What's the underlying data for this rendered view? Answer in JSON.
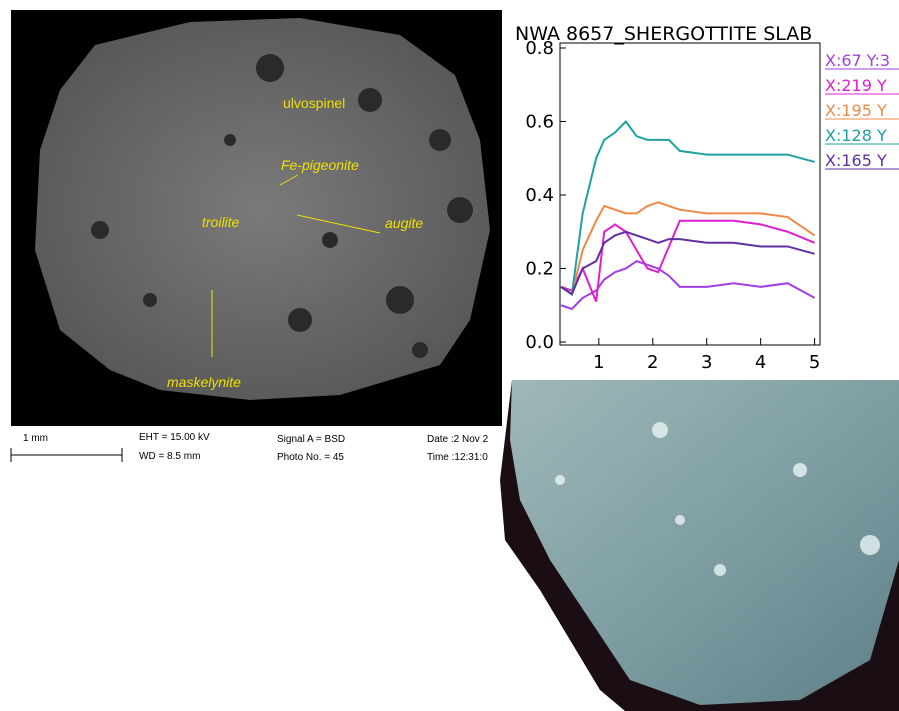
{
  "sem": {
    "labels": [
      "ulvospinel",
      "Fe-pigeonite",
      "troilite",
      "augite",
      "maskelynite"
    ],
    "caption": {
      "scale": "1 mm",
      "eht": "EHT = 15.00 kV",
      "wd": "WD =  8.5 mm",
      "signal": "Signal A = BSD",
      "photo": "Photo No. = 45",
      "date": "Date :2 Nov 2",
      "time": "Time :12:31:0"
    }
  },
  "chart_data": {
    "type": "line",
    "title": "NWA 8657_SHERGOTTITE SLAB",
    "x": [
      0.3,
      0.5,
      0.7,
      0.95,
      1.1,
      1.3,
      1.5,
      1.7,
      1.9,
      2.1,
      2.3,
      2.5,
      3,
      3.5,
      4,
      4.5,
      5
    ],
    "series": [
      {
        "name": "X:67 Y:3",
        "color": "#a040e0",
        "values": [
          0.1,
          0.09,
          0.12,
          0.14,
          0.17,
          0.19,
          0.2,
          0.22,
          0.21,
          0.2,
          0.18,
          0.15,
          0.15,
          0.16,
          0.15,
          0.16,
          0.12
        ]
      },
      {
        "name": "X:219 Y",
        "color": "#e020d0",
        "values": [
          0.15,
          0.14,
          0.2,
          0.11,
          0.3,
          0.32,
          0.3,
          0.25,
          0.2,
          0.19,
          0.26,
          0.33,
          0.33,
          0.33,
          0.32,
          0.3,
          0.27
        ]
      },
      {
        "name": "X:195 Y",
        "color": "#f08848",
        "values": [
          0.15,
          0.13,
          0.25,
          0.33,
          0.37,
          0.36,
          0.35,
          0.35,
          0.37,
          0.38,
          0.37,
          0.36,
          0.35,
          0.35,
          0.35,
          0.34,
          0.29
        ]
      },
      {
        "name": "X:128 Y",
        "color": "#20a0a0",
        "values": [
          0.15,
          0.13,
          0.35,
          0.5,
          0.55,
          0.57,
          0.6,
          0.56,
          0.55,
          0.55,
          0.55,
          0.52,
          0.51,
          0.51,
          0.51,
          0.51,
          0.49
        ]
      },
      {
        "name": "X:165 Y",
        "color": "#6030a0",
        "values": [
          0.15,
          0.13,
          0.2,
          0.22,
          0.27,
          0.29,
          0.3,
          0.29,
          0.28,
          0.27,
          0.28,
          0.28,
          0.27,
          0.27,
          0.26,
          0.26,
          0.24
        ]
      }
    ],
    "xlim": [
      0.28,
      5.1
    ],
    "xticks": [
      1,
      2,
      3,
      4,
      5
    ],
    "ylim": [
      0,
      0.8
    ],
    "yticks": [
      {
        "value": 0,
        "label": "0.0"
      },
      0.2,
      0.4,
      0.6,
      0.8
    ],
    "grid": false
  }
}
